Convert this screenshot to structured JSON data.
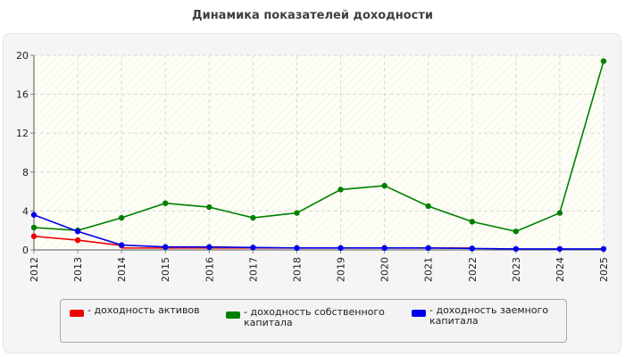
{
  "chart_data": {
    "type": "line",
    "title": "Динамика показателей доходности",
    "x": [
      "2012",
      "2013",
      "2014",
      "2015",
      "2016",
      "2017",
      "2018",
      "2019",
      "2020",
      "2021",
      "2022",
      "2023",
      "2024",
      "2025"
    ],
    "ylim": [
      0,
      20
    ],
    "yticks": [
      "0",
      "4",
      "8",
      "12",
      "16",
      "20"
    ],
    "grid": true,
    "legend_position": "bottom",
    "series": [
      {
        "name": "- доходность активов",
        "color": "#ee0000",
        "values": [
          1.4,
          1.0,
          0.45,
          null,
          null,
          null,
          null,
          null,
          null,
          null,
          null,
          null,
          null,
          null
        ]
      },
      {
        "name": "- доходность собственного капитала",
        "color": "#008000",
        "values": [
          2.3,
          2.0,
          3.3,
          4.8,
          4.4,
          3.3,
          3.8,
          6.2,
          6.6,
          4.5,
          2.9,
          1.9,
          3.8,
          19.4
        ]
      },
      {
        "name": "- доходность заемного капитала",
        "color": "#0000ee",
        "values": [
          3.6,
          1.9,
          0.5,
          0.3,
          0.3,
          0.25,
          0.2,
          0.2,
          0.2,
          0.2,
          0.15,
          0.1,
          0.1,
          0.1
        ]
      }
    ],
    "extra_line": {
      "series": 0,
      "from": "2014",
      "to": "2022",
      "value": 0.2
    }
  }
}
